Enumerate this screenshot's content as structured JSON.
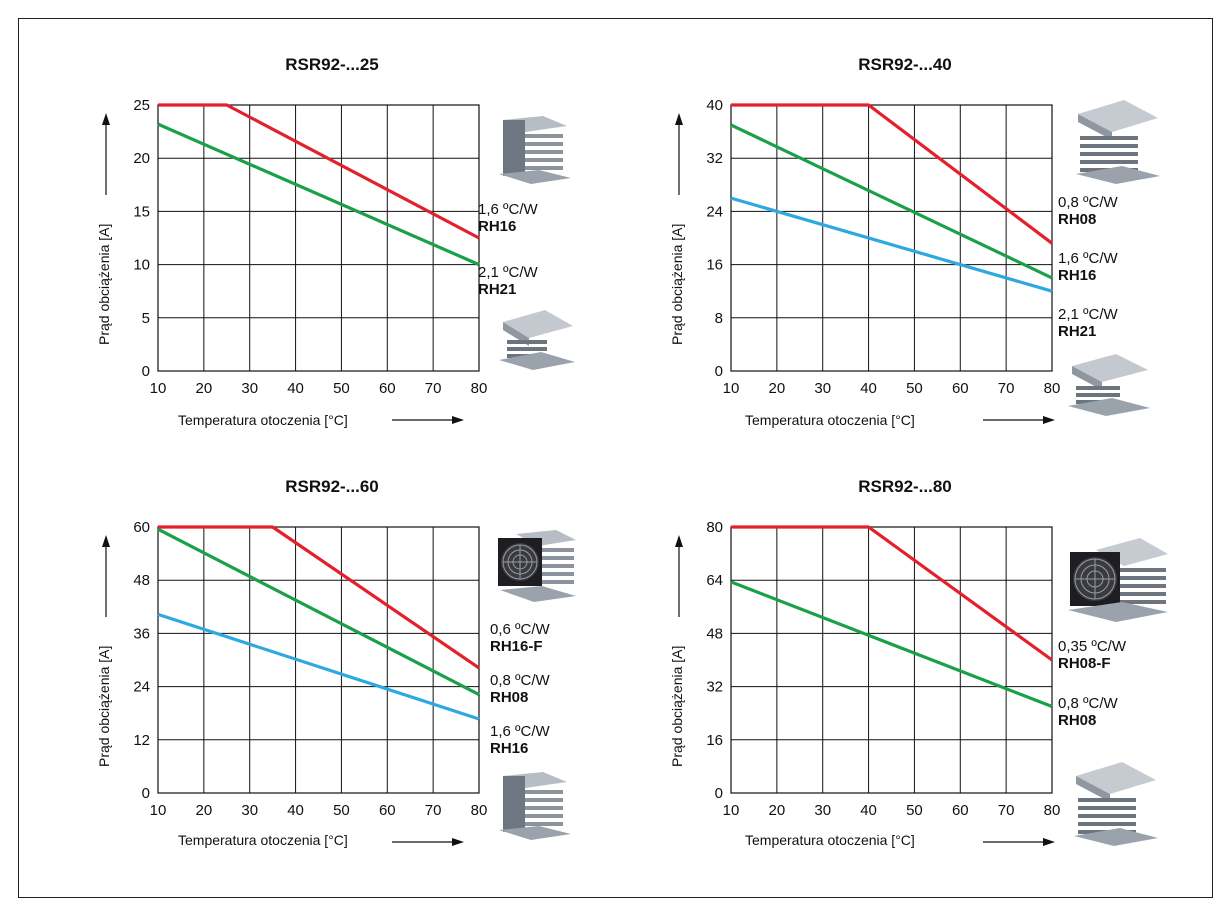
{
  "colors": {
    "red": "#e3202b",
    "green": "#1ba04a",
    "blue": "#2ea8e0",
    "grid": "#111111"
  },
  "axis": {
    "ylabel": "Prąd obciążenia [A]",
    "xlabel": "Temperatura otoczenia [°C]"
  },
  "chart_data": [
    {
      "type": "line",
      "title": "RSR92-...25",
      "xlabel": "Temperatura otoczenia [°C]",
      "ylabel": "Prąd obciążenia [A]",
      "xlim": [
        10,
        80
      ],
      "ylim": [
        0,
        25
      ],
      "xticks": [
        10,
        20,
        30,
        40,
        50,
        60,
        70,
        80
      ],
      "yticks": [
        0,
        5,
        10,
        15,
        20,
        25
      ],
      "grid": true,
      "series": [
        {
          "color": "red",
          "x": [
            10,
            25,
            80
          ],
          "y": [
            25,
            25,
            12.5
          ]
        },
        {
          "color": "green",
          "x": [
            10,
            80
          ],
          "y": [
            23.2,
            10
          ]
        }
      ],
      "heatsinks": [
        {
          "rth": "1,6 ºC/W",
          "model": "RH16",
          "icon": "heatsink-tall-icon"
        },
        {
          "rth": "2,1 ºC/W",
          "model": "RH21",
          "icon": "heatsink-flat-icon"
        }
      ]
    },
    {
      "type": "line",
      "title": "RSR92-...40",
      "xlabel": "Temperatura otoczenia [°C]",
      "ylabel": "Prąd obciążenia [A]",
      "xlim": [
        10,
        80
      ],
      "ylim": [
        0,
        40
      ],
      "xticks": [
        10,
        20,
        30,
        40,
        50,
        60,
        70,
        80
      ],
      "yticks": [
        0,
        8,
        16,
        24,
        32,
        40
      ],
      "grid": true,
      "series": [
        {
          "color": "red",
          "x": [
            10,
            40,
            80
          ],
          "y": [
            40,
            40,
            19.2
          ]
        },
        {
          "color": "green",
          "x": [
            10,
            80
          ],
          "y": [
            37,
            14
          ]
        },
        {
          "color": "blue",
          "x": [
            10,
            80
          ],
          "y": [
            26,
            12
          ]
        }
      ],
      "heatsinks": [
        {
          "rth": "0,8 ºC/W",
          "model": "RH08",
          "icon": "heatsink-large-icon"
        },
        {
          "rth": "1,6 ºC/W",
          "model": "RH16",
          "icon": ""
        },
        {
          "rth": "2,1 ºC/W",
          "model": "RH21",
          "icon": "heatsink-flat-icon"
        }
      ]
    },
    {
      "type": "line",
      "title": "RSR92-...60",
      "xlabel": "Temperatura otoczenia [°C]",
      "ylabel": "Prąd obciążenia [A]",
      "xlim": [
        10,
        80
      ],
      "ylim": [
        0,
        60
      ],
      "xticks": [
        10,
        20,
        30,
        40,
        50,
        60,
        70,
        80
      ],
      "yticks": [
        0,
        12,
        24,
        36,
        48,
        60
      ],
      "grid": true,
      "series": [
        {
          "color": "red",
          "x": [
            10,
            35,
            80
          ],
          "y": [
            60,
            60,
            28.2
          ]
        },
        {
          "color": "green",
          "x": [
            10,
            80
          ],
          "y": [
            59.5,
            22.2
          ]
        },
        {
          "color": "blue",
          "x": [
            10,
            80
          ],
          "y": [
            40.3,
            16.7
          ]
        }
      ],
      "heatsinks": [
        {
          "rth": "0,6 ºC/W",
          "model": "RH16-F",
          "icon": "heatsink-fan-icon"
        },
        {
          "rth": "0,8 ºC/W",
          "model": "RH08",
          "icon": ""
        },
        {
          "rth": "1,6 ºC/W",
          "model": "RH16",
          "icon": "heatsink-tall-icon"
        }
      ]
    },
    {
      "type": "line",
      "title": "RSR92-...80",
      "xlabel": "Temperatura otoczenia [°C]",
      "ylabel": "Prąd obciążenia [A]",
      "xlim": [
        10,
        80
      ],
      "ylim": [
        0,
        80
      ],
      "xticks": [
        10,
        20,
        30,
        40,
        50,
        60,
        70,
        80
      ],
      "yticks": [
        0,
        16,
        32,
        48,
        64,
        80
      ],
      "grid": true,
      "series": [
        {
          "color": "red",
          "x": [
            10,
            40,
            80
          ],
          "y": [
            80,
            80,
            40
          ]
        },
        {
          "color": "green",
          "x": [
            10,
            80
          ],
          "y": [
            63.5,
            26
          ]
        }
      ],
      "heatsinks": [
        {
          "rth": "0,35 ºC/W",
          "model": "RH08-F",
          "icon": "heatsink-fan-large-icon"
        },
        {
          "rth": "0,8 ºC/W",
          "model": "RH08",
          "icon": "heatsink-large-icon"
        }
      ]
    }
  ]
}
